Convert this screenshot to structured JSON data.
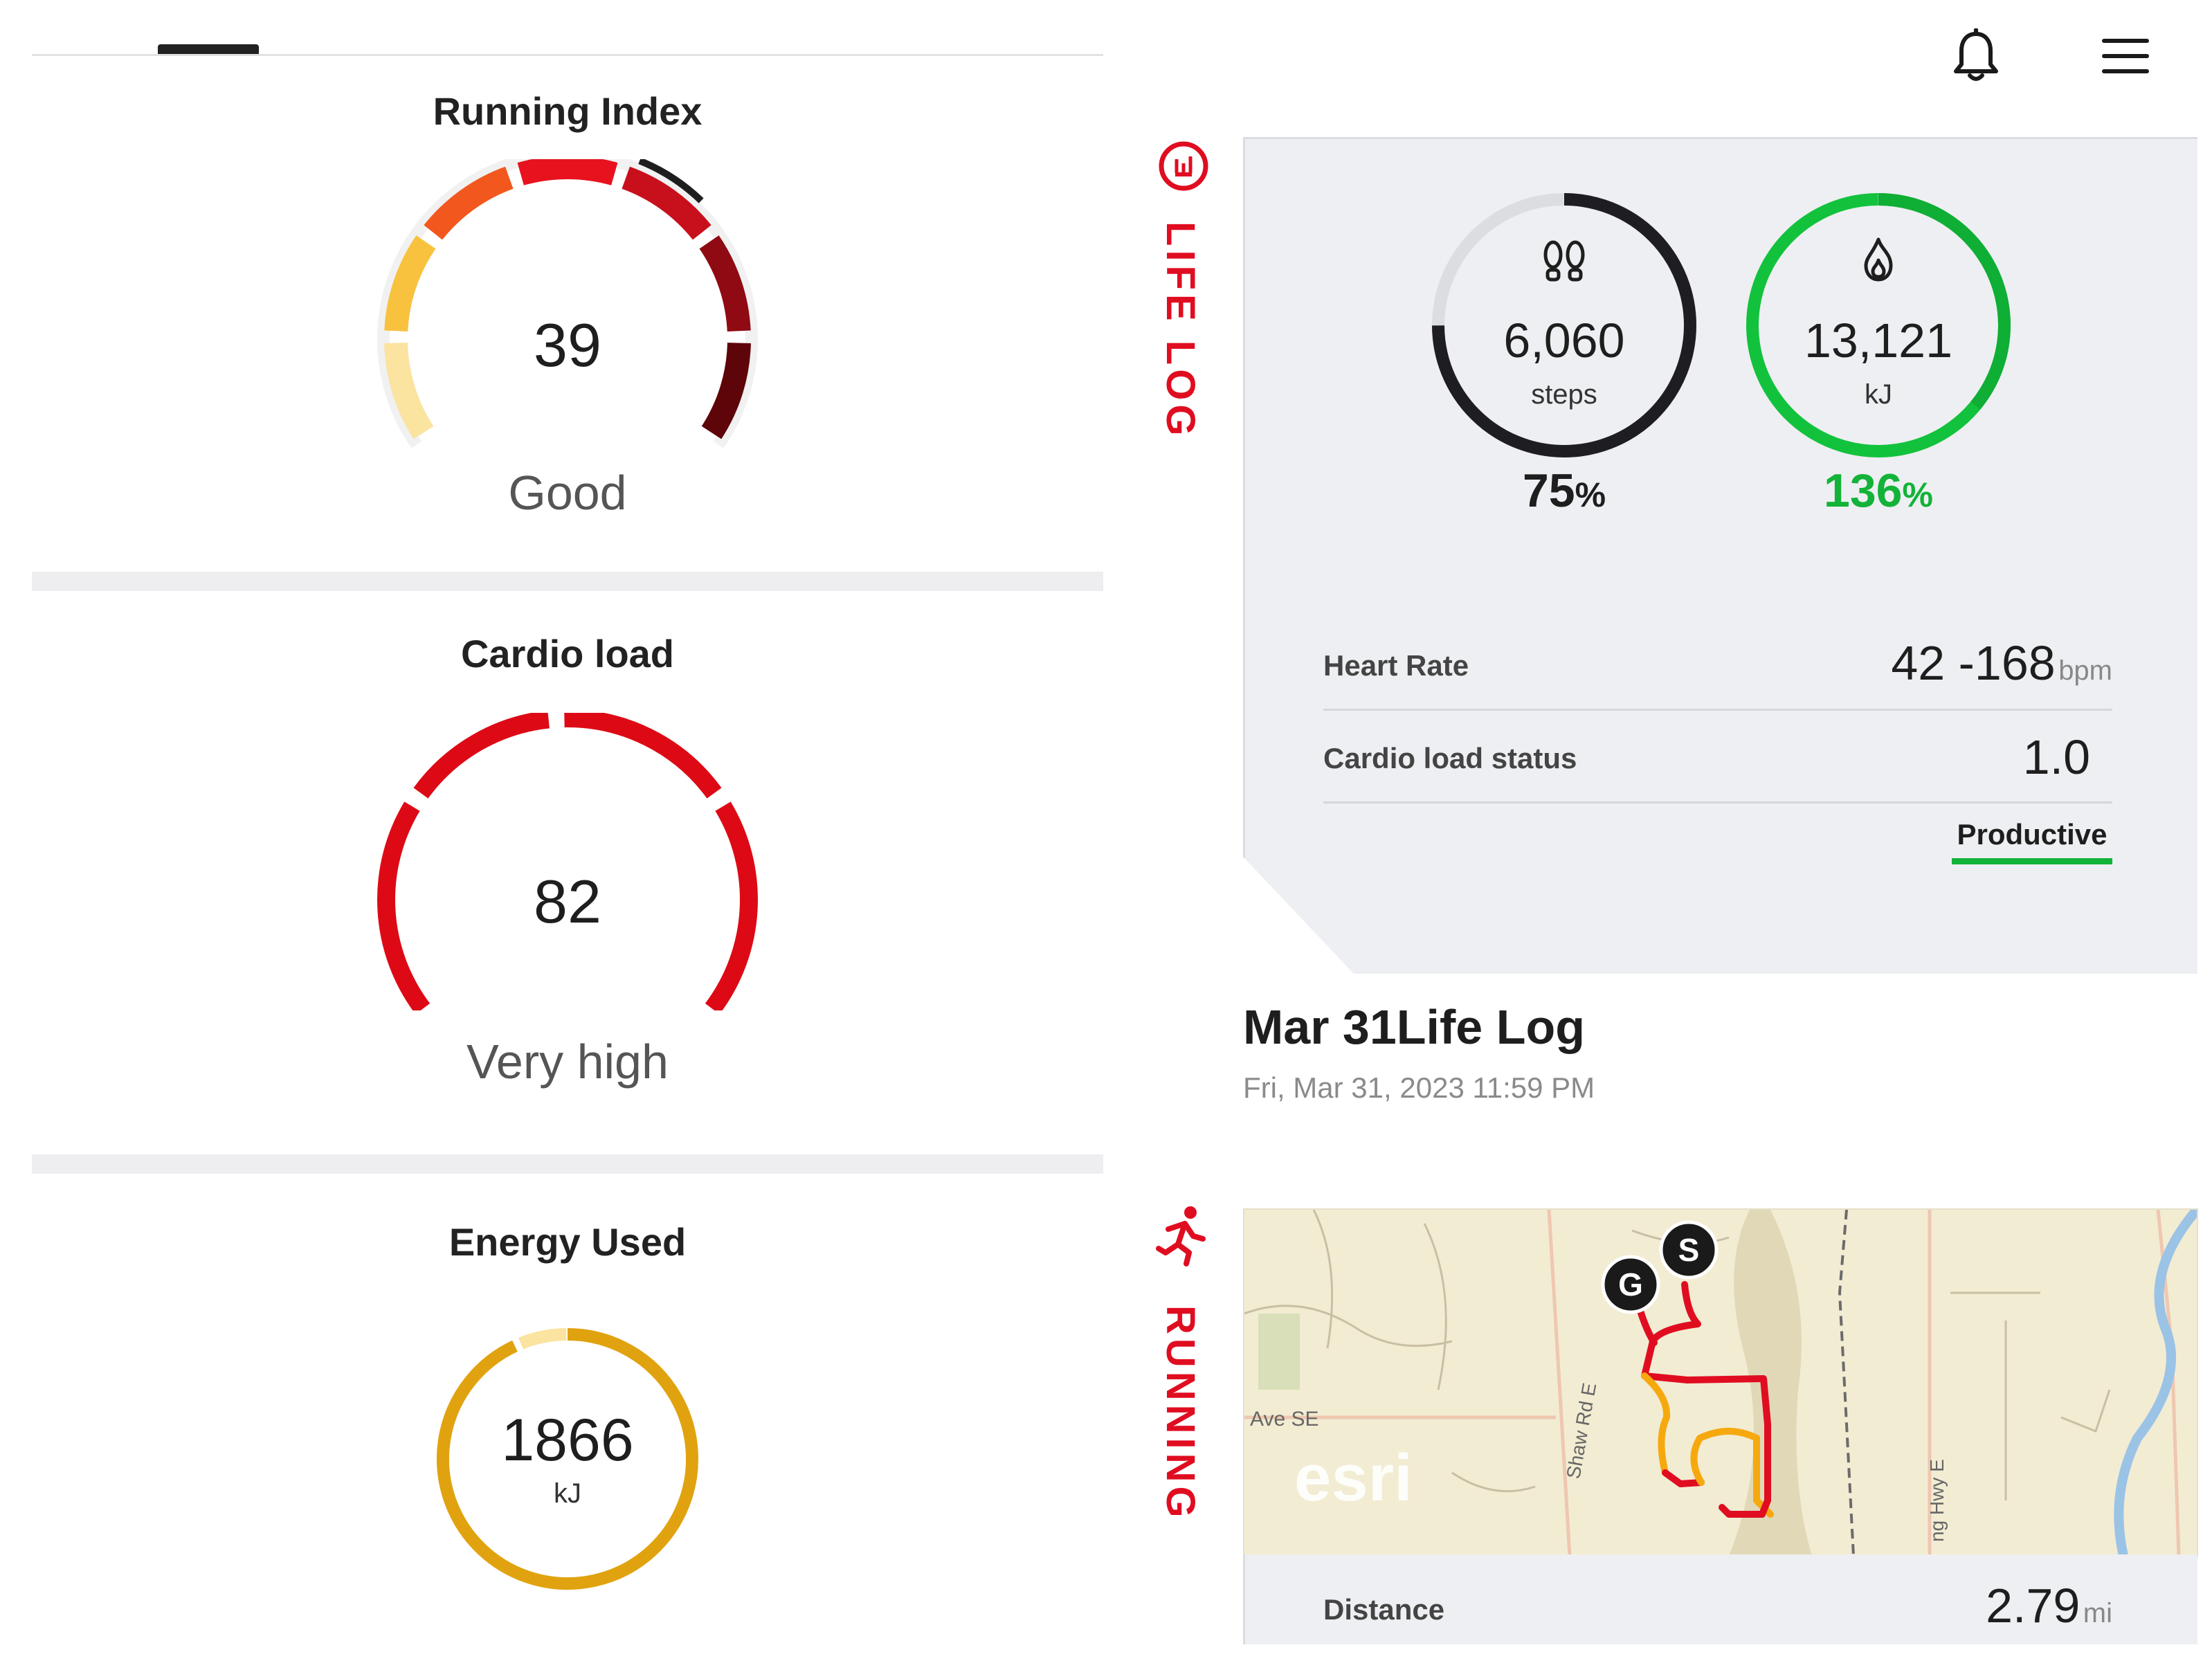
{
  "left": {
    "running_index": {
      "title": "Running Index",
      "value": "39",
      "rating": "Good",
      "segment_colors": [
        "#fbe3a0",
        "#f8c23f",
        "#f2581e",
        "#e8121f",
        "#c8101c",
        "#8f0a12",
        "#5e0509"
      ]
    },
    "cardio_load": {
      "title": "Cardio load",
      "value": "82",
      "rating": "Very high",
      "color": "#dd0a15"
    },
    "energy_used": {
      "title": "Energy Used",
      "value": "1866",
      "unit": "kJ",
      "ring_color": "#e0a30f",
      "light_color": "#fbe3a0"
    }
  },
  "header": {
    "icons": [
      "bell-icon",
      "menu-icon"
    ]
  },
  "lifelog": {
    "side_label": "LIFE LOG",
    "steps": {
      "value": "6,060",
      "unit": "steps",
      "percent": "75",
      "pct_sign": "%",
      "progress": 0.75,
      "color": "#1e1e22"
    },
    "energy": {
      "value": "13,121",
      "unit": "kJ",
      "percent": "136",
      "pct_sign": "%",
      "progress": 1.36,
      "color": "#12c23c"
    },
    "heart_rate": {
      "label": "Heart Rate",
      "value": "42 -168",
      "unit": "bpm"
    },
    "cardio_status": {
      "label": "Cardio load status",
      "value": "1.0",
      "status": "Productive",
      "status_color": "#12b338"
    },
    "entry_title": "Mar 31Life Log",
    "entry_datetime": "Fri, Mar 31, 2023 11:59 PM"
  },
  "running": {
    "side_label": "RUNNING",
    "map": {
      "logo": "esri",
      "labels": [
        "Ave SE",
        "Shaw Rd E",
        "ng Hwy E"
      ],
      "start_marker": "S",
      "goal_marker": "G"
    },
    "distance": {
      "label": "Distance",
      "value": "2.79",
      "unit": "mi"
    }
  }
}
